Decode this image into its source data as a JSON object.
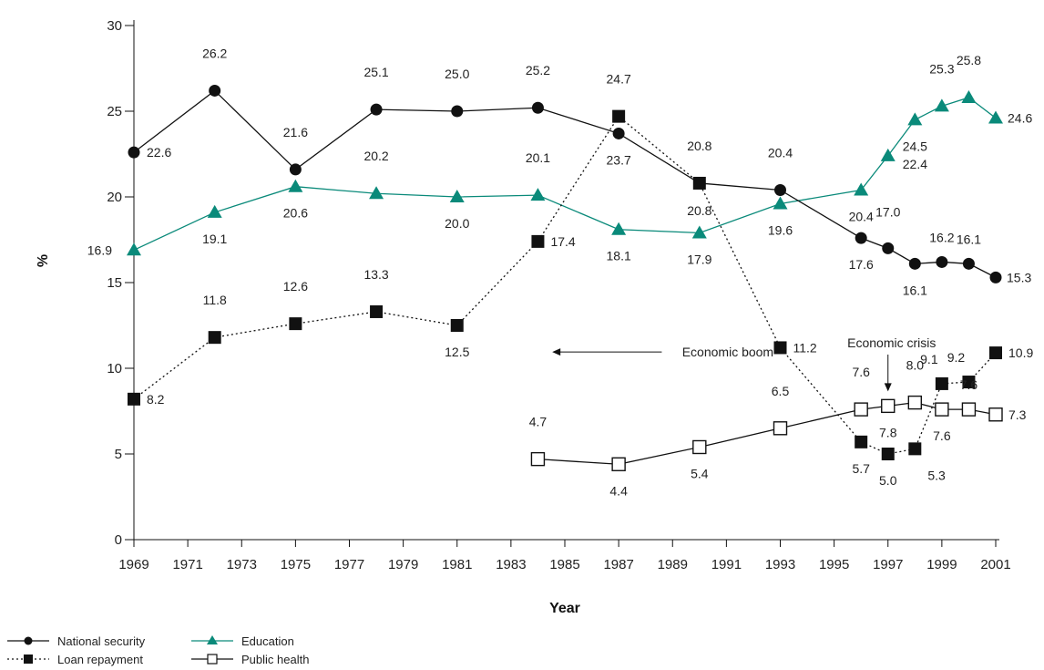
{
  "chart_data": {
    "type": "line",
    "xlabel": "Year",
    "ylabel": "%",
    "ylim": [
      0,
      30
    ],
    "yticks": [
      0,
      5,
      10,
      15,
      20,
      25,
      30
    ],
    "xlim": [
      1969,
      2001
    ],
    "xticks": [
      1969,
      1971,
      1973,
      1975,
      1977,
      1979,
      1981,
      1983,
      1985,
      1987,
      1989,
      1991,
      1993,
      1995,
      1997,
      1999,
      2001
    ],
    "grid": false,
    "legend_position": "bottom-left",
    "colors": {
      "National security": "#111111",
      "Loan repayment": "#111111",
      "Education": "#0a8a7a",
      "Public health": "#111111"
    },
    "series": [
      {
        "name": "National security",
        "marker": "circle-filled",
        "line": "solid",
        "x": [
          1969,
          1972,
          1975,
          1978,
          1981,
          1984,
          1987,
          1990,
          1993,
          1996,
          1997,
          1998,
          1999,
          2000,
          2001
        ],
        "values": [
          22.6,
          26.2,
          21.6,
          25.1,
          25.0,
          25.2,
          23.7,
          20.8,
          20.4,
          17.6,
          17.0,
          16.1,
          16.2,
          16.1,
          15.3
        ],
        "labels": [
          "22.6",
          "26.2",
          "21.6",
          "25.1",
          "25.0",
          "25.2",
          "23.7",
          "20.8",
          "20.4",
          "17.6",
          "17.0",
          "16.1",
          "16.2",
          "16.1",
          "15.3"
        ]
      },
      {
        "name": "Loan repayment",
        "marker": "square-filled",
        "line": "dotted",
        "x": [
          1969,
          1972,
          1975,
          1978,
          1981,
          1984,
          1987,
          1990,
          1993,
          1996,
          1997,
          1998,
          1999,
          2000,
          2001
        ],
        "values": [
          8.2,
          11.8,
          12.6,
          13.3,
          12.5,
          17.4,
          24.7,
          20.8,
          11.2,
          5.7,
          5.0,
          5.3,
          9.1,
          9.2,
          10.9
        ],
        "labels": [
          "8.2",
          "11.8",
          "12.6",
          "13.3",
          "12.5",
          "17.4",
          "24.7",
          "20.8",
          "11.2",
          "5.7",
          "5.0",
          "5.3",
          "9.1",
          "9.2",
          "10.9"
        ]
      },
      {
        "name": "Education",
        "marker": "triangle-filled",
        "line": "solid",
        "x": [
          1969,
          1972,
          1975,
          1978,
          1981,
          1984,
          1987,
          1990,
          1993,
          1996,
          1997,
          1998,
          1999,
          2000,
          2001
        ],
        "values": [
          16.9,
          19.1,
          20.6,
          20.2,
          20.0,
          20.1,
          18.1,
          17.9,
          19.6,
          20.4,
          22.4,
          24.5,
          25.3,
          25.8,
          24.6
        ],
        "labels": [
          "16.9",
          "19.1",
          "20.6",
          "20.2",
          "20.0",
          "20.1",
          "18.1",
          "17.9",
          "19.6",
          "20.4",
          "22.4",
          "24.5",
          "25.3",
          "25.8",
          "24.6"
        ]
      },
      {
        "name": "Public health",
        "marker": "square-open",
        "line": "solid",
        "x": [
          1984,
          1987,
          1990,
          1993,
          1996,
          1997,
          1998,
          1999,
          2000,
          2001
        ],
        "values": [
          4.7,
          4.4,
          5.4,
          6.5,
          7.6,
          7.8,
          8.0,
          7.6,
          7.6,
          7.3
        ],
        "labels": [
          "4.7",
          "4.4",
          "5.4",
          "6.5",
          "7.6",
          "7.8",
          "8.0",
          "7.6",
          "7.6",
          "7.3"
        ]
      }
    ],
    "annotations": [
      {
        "text": "Economic boom",
        "arrow": "left",
        "x": 1993,
        "y": 11.5
      },
      {
        "text": "Economic crisis",
        "arrow": "down",
        "x": 1997,
        "y": 12.0
      }
    ]
  }
}
